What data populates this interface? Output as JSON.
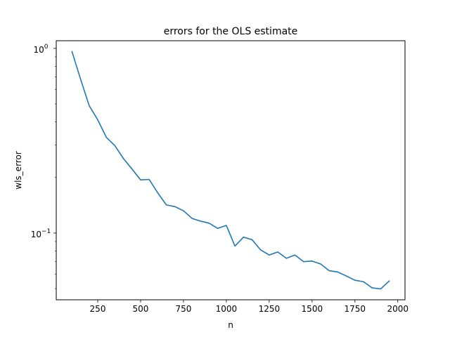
{
  "chart_data": {
    "type": "line",
    "title": "errors for the OLS estimate",
    "xlabel": "n",
    "ylabel": "wls_error",
    "xlim": [
      8,
      2042
    ],
    "ylim": [
      0.0435,
      1.1
    ],
    "yscale": "log",
    "grid": false,
    "x_ticks": [
      250,
      500,
      750,
      1000,
      1250,
      1500,
      1750,
      2000
    ],
    "x_tick_labels": [
      "250",
      "500",
      "750",
      "1000",
      "1250",
      "1500",
      "1750",
      "2000"
    ],
    "y_major_ticks": [
      0.1,
      1
    ],
    "y_tick_labels": [
      "10",
      "10"
    ],
    "y_tick_exponents": [
      "−1",
      "0"
    ],
    "y_minor_ticks": [
      0.05,
      0.06,
      0.07,
      0.08,
      0.09,
      0.2,
      0.3,
      0.4,
      0.5,
      0.6,
      0.7,
      0.8,
      0.9
    ],
    "series": [
      {
        "color": "#1f77b4",
        "x": [
          100,
          150,
          200,
          250,
          300,
          350,
          400,
          450,
          500,
          550,
          600,
          650,
          700,
          750,
          800,
          850,
          900,
          950,
          1000,
          1050,
          1100,
          1150,
          1200,
          1250,
          1300,
          1350,
          1400,
          1450,
          1500,
          1550,
          1600,
          1650,
          1700,
          1750,
          1800,
          1850,
          1900,
          1950
        ],
        "y": [
          0.96,
          0.68,
          0.49,
          0.41,
          0.33,
          0.297,
          0.253,
          0.222,
          0.194,
          0.195,
          0.165,
          0.142,
          0.139,
          0.132,
          0.12,
          0.116,
          0.113,
          0.106,
          0.11,
          0.085,
          0.095,
          0.092,
          0.081,
          0.076,
          0.079,
          0.073,
          0.076,
          0.07,
          0.0705,
          0.068,
          0.0625,
          0.0615,
          0.0585,
          0.0555,
          0.0545,
          0.0505,
          0.0498,
          0.055
        ]
      }
    ]
  }
}
